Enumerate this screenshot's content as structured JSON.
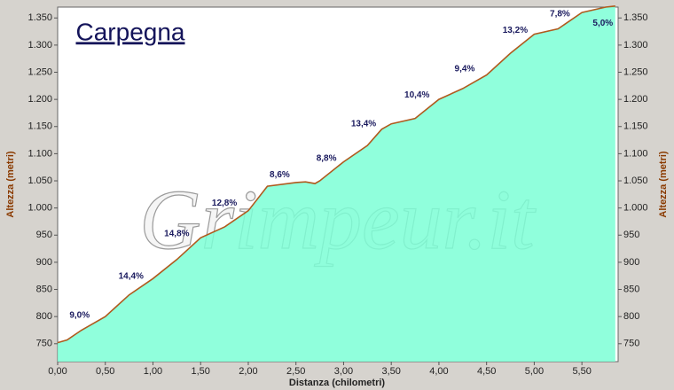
{
  "chart_data": {
    "type": "area",
    "title": "Carpegna",
    "watermark": "Grimpeur.it",
    "xlabel": "Distanza (chilometri)",
    "ylabel": "Altezza (metri)",
    "y2label": "Altezza (metri)",
    "x": [
      0,
      0.1,
      0.25,
      0.5,
      0.75,
      1.0,
      1.25,
      1.5,
      1.75,
      2.0,
      2.2,
      2.5,
      2.6,
      2.7,
      2.75,
      3.0,
      3.25,
      3.4,
      3.5,
      3.75,
      4.0,
      4.25,
      4.5,
      4.75,
      5.0,
      5.25,
      5.5,
      5.75,
      5.85
    ],
    "values": [
      752,
      757,
      775,
      800,
      840,
      870,
      905,
      945,
      965,
      995,
      1040,
      1047,
      1048,
      1045,
      1050,
      1085,
      1115,
      1145,
      1155,
      1165,
      1200,
      1220,
      1245,
      1285,
      1320,
      1330,
      1360,
      1370,
      1372
    ],
    "color": "#7dffd6",
    "line_color": "#b05a1e",
    "xlim": [
      0,
      5.88
    ],
    "ylim": [
      717,
      1370
    ],
    "xticks": [
      {
        "value": 0,
        "label": "0,00"
      },
      {
        "value": 0.5,
        "label": "0,50"
      },
      {
        "value": 1,
        "label": "1,00"
      },
      {
        "value": 1.5,
        "label": "1,50"
      },
      {
        "value": 2,
        "label": "2,00"
      },
      {
        "value": 2.5,
        "label": "2,50"
      },
      {
        "value": 3,
        "label": "3,00"
      },
      {
        "value": 3.5,
        "label": "3,50"
      },
      {
        "value": 4,
        "label": "4,00"
      },
      {
        "value": 4.5,
        "label": "4,50"
      },
      {
        "value": 5,
        "label": "5,00"
      },
      {
        "value": 5.5,
        "label": "5,50"
      }
    ],
    "yticks": [
      750,
      800,
      850,
      900,
      950,
      {
        "value": 1000,
        "label": "1.000"
      },
      {
        "value": 1050,
        "label": "1.050"
      },
      {
        "value": 1100,
        "label": "1.100"
      },
      {
        "value": 1150,
        "label": "1.150"
      },
      {
        "value": 1200,
        "label": "1.200"
      },
      {
        "value": 1250,
        "label": "1.250"
      },
      {
        "value": 1300,
        "label": "1.300"
      },
      {
        "value": 1350,
        "label": "1.350"
      }
    ],
    "annotations": [
      {
        "text": "9,0%",
        "x": 0.23,
        "y": 802
      },
      {
        "text": "14,4%",
        "x": 0.77,
        "y": 874
      },
      {
        "text": "14,8%",
        "x": 1.25,
        "y": 952
      },
      {
        "text": "12,8%",
        "x": 1.75,
        "y": 1009
      },
      {
        "text": "8,6%",
        "x": 2.33,
        "y": 1061
      },
      {
        "text": "8,8%",
        "x": 2.82,
        "y": 1091
      },
      {
        "text": "13,4%",
        "x": 3.21,
        "y": 1155
      },
      {
        "text": "10,4%",
        "x": 3.77,
        "y": 1208
      },
      {
        "text": "9,4%",
        "x": 4.27,
        "y": 1256
      },
      {
        "text": "13,2%",
        "x": 4.8,
        "y": 1327
      },
      {
        "text": "7,8%",
        "x": 5.27,
        "y": 1357
      },
      {
        "text": "5,0%",
        "x": 5.72,
        "y": 1340
      }
    ]
  }
}
